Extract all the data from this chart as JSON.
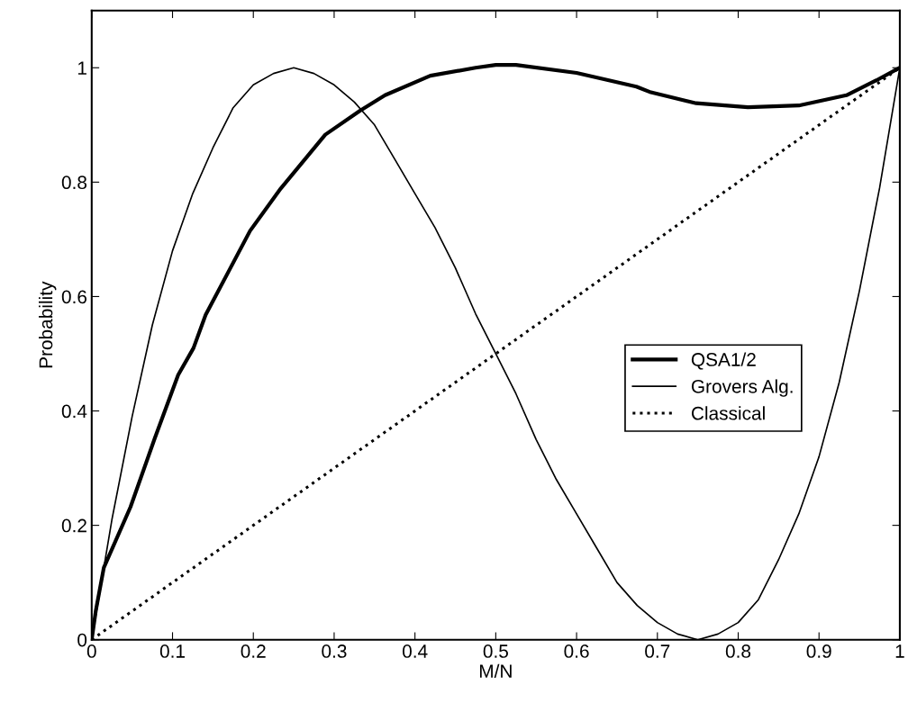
{
  "chart_data": {
    "type": "line",
    "xlabel": "M/N",
    "ylabel": "Probability",
    "xlim": [
      0,
      1
    ],
    "ylim": [
      0,
      1.1
    ],
    "xticks": [
      0,
      0.1,
      0.2,
      0.3,
      0.4,
      0.5,
      0.6,
      0.7,
      0.8,
      0.9,
      1
    ],
    "yticks": [
      0,
      0.2,
      0.4,
      0.6,
      0.8,
      1
    ],
    "grid": false,
    "legend": "right",
    "marker": "none",
    "series": [
      {
        "name": "QSA1/2",
        "color": "#000000",
        "line_style": "solid",
        "x": [
          0,
          0.005,
          0.015,
          0.048,
          0.078,
          0.107,
          0.126,
          0.141,
          0.196,
          0.234,
          0.289,
          0.332,
          0.363,
          0.419,
          0.475,
          0.5,
          0.525,
          0.6,
          0.674,
          0.692,
          0.748,
          0.812,
          0.875,
          0.934,
          0.971,
          1
        ],
        "values": [
          0,
          0.05,
          0.126,
          0.232,
          0.352,
          0.463,
          0.51,
          0.568,
          0.715,
          0.789,
          0.883,
          0.925,
          0.952,
          0.986,
          1.0,
          1.005,
          1.005,
          0.991,
          0.967,
          0.957,
          0.938,
          0.931,
          0.934,
          0.952,
          0.978,
          1.0
        ]
      },
      {
        "name": "Grovers Alg.",
        "color": "#000000",
        "line_style": "solid",
        "x": [
          0,
          0.025,
          0.05,
          0.075,
          0.1,
          0.125,
          0.15,
          0.175,
          0.2,
          0.225,
          0.25,
          0.275,
          0.3,
          0.325,
          0.35,
          0.375,
          0.4,
          0.425,
          0.45,
          0.475,
          0.5,
          0.525,
          0.55,
          0.575,
          0.6,
          0.625,
          0.65,
          0.675,
          0.7,
          0.725,
          0.75,
          0.775,
          0.8,
          0.825,
          0.85,
          0.875,
          0.9,
          0.925,
          0.95,
          0.975,
          1
        ],
        "values": [
          0,
          0.21,
          0.39,
          0.55,
          0.68,
          0.78,
          0.86,
          0.93,
          0.97,
          0.99,
          1.0,
          0.99,
          0.97,
          0.94,
          0.9,
          0.84,
          0.78,
          0.72,
          0.65,
          0.57,
          0.5,
          0.43,
          0.35,
          0.28,
          0.22,
          0.16,
          0.1,
          0.06,
          0.03,
          0.01,
          0,
          0.01,
          0.03,
          0.07,
          0.14,
          0.22,
          0.32,
          0.45,
          0.61,
          0.79,
          1.0
        ]
      },
      {
        "name": "Classical",
        "color": "#000000",
        "line_style": "dotted",
        "x": [
          0,
          1
        ],
        "values": [
          0,
          1
        ]
      }
    ]
  }
}
